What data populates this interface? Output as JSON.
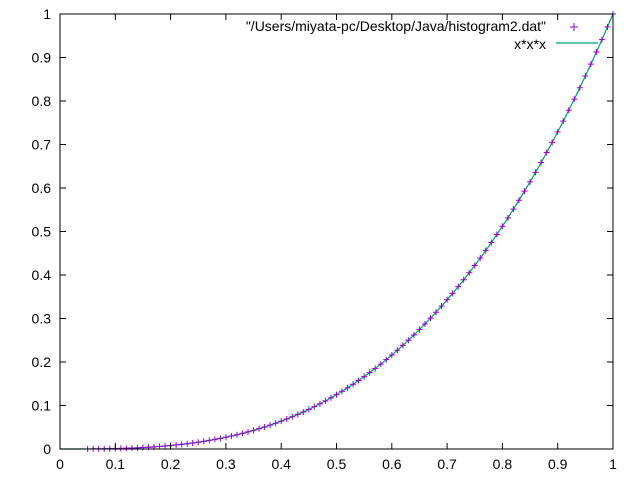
{
  "chart_data": {
    "type": "scatter",
    "xlim": [
      0,
      1
    ],
    "ylim": [
      0,
      1
    ],
    "xticks": [
      "0",
      "0.1",
      "0.2",
      "0.3",
      "0.4",
      "0.5",
      "0.6",
      "0.7",
      "0.8",
      "0.9",
      "1"
    ],
    "yticks": [
      "0",
      "0.1",
      "0.2",
      "0.3",
      "0.4",
      "0.5",
      "0.6",
      "0.7",
      "0.8",
      "0.9",
      "1"
    ],
    "grid": false,
    "legend_position": "top-right",
    "series": [
      {
        "name": "\"/Users/miyata-pc/Desktop/Java/histogram2.dat\"",
        "kind": "points",
        "marker": "plus",
        "color": "#9400d3",
        "x": [
          0.05,
          0.06,
          0.07,
          0.08,
          0.09,
          0.1,
          0.11,
          0.12,
          0.13,
          0.14,
          0.15,
          0.16,
          0.17,
          0.18,
          0.19,
          0.2,
          0.21,
          0.22,
          0.23,
          0.24,
          0.25,
          0.26,
          0.27,
          0.28,
          0.29,
          0.3,
          0.31,
          0.32,
          0.33,
          0.34,
          0.35,
          0.36,
          0.37,
          0.38,
          0.39,
          0.4,
          0.41,
          0.42,
          0.43,
          0.44,
          0.45,
          0.46,
          0.47,
          0.48,
          0.49,
          0.5,
          0.51,
          0.52,
          0.53,
          0.54,
          0.55,
          0.56,
          0.57,
          0.58,
          0.59,
          0.6,
          0.61,
          0.62,
          0.63,
          0.64,
          0.65,
          0.66,
          0.67,
          0.68,
          0.69,
          0.7,
          0.71,
          0.72,
          0.73,
          0.74,
          0.75,
          0.76,
          0.77,
          0.78,
          0.79,
          0.8,
          0.81,
          0.82,
          0.83,
          0.84,
          0.85,
          0.86,
          0.87,
          0.88,
          0.89,
          0.9,
          0.91,
          0.92,
          0.93,
          0.94,
          0.95,
          0.96,
          0.97,
          0.98,
          0.99,
          1.0
        ],
        "y": [
          0.0001,
          0.0002,
          0.0003,
          0.0005,
          0.0007,
          0.001,
          0.0013,
          0.0017,
          0.0022,
          0.0027,
          0.0034,
          0.0041,
          0.0049,
          0.0058,
          0.0069,
          0.008,
          0.0093,
          0.0106,
          0.0122,
          0.0138,
          0.0156,
          0.0176,
          0.0197,
          0.022,
          0.0244,
          0.027,
          0.0298,
          0.0328,
          0.0359,
          0.0393,
          0.0429,
          0.0467,
          0.0507,
          0.0549,
          0.0593,
          0.064,
          0.0689,
          0.0741,
          0.0795,
          0.0852,
          0.0911,
          0.0973,
          0.1038,
          0.1106,
          0.1176,
          0.125,
          0.1327,
          0.1406,
          0.1489,
          0.1575,
          0.1664,
          0.1756,
          0.1852,
          0.1951,
          0.2054,
          0.216,
          0.227,
          0.2383,
          0.25,
          0.2621,
          0.2746,
          0.2875,
          0.3008,
          0.3144,
          0.3285,
          0.343,
          0.3579,
          0.3732,
          0.389,
          0.4052,
          0.4219,
          0.439,
          0.4565,
          0.4746,
          0.493,
          0.512,
          0.5314,
          0.5514,
          0.5718,
          0.5927,
          0.6141,
          0.636,
          0.6585,
          0.6815,
          0.705,
          0.729,
          0.7536,
          0.7787,
          0.8044,
          0.8306,
          0.8574,
          0.8847,
          0.9127,
          0.9412,
          0.9703,
          1.0
        ]
      },
      {
        "name": "x*x*x",
        "kind": "line",
        "color": "#009e73",
        "function": "x^3"
      }
    ]
  }
}
